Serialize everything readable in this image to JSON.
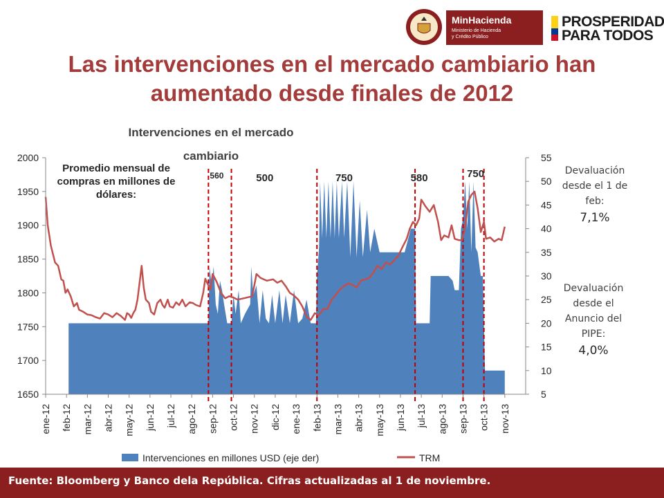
{
  "header": {
    "title_line1": "Las intervenciones en el mercado cambiario han",
    "title_line2": "aumentado desde finales de 2012",
    "logos": {
      "seal_icon": "republica-de-colombia-seal-icon",
      "ministry_name": "MinHacienda",
      "ministry_sub1": "Ministerio de Hacienda",
      "ministry_sub2": "y Crédito Público",
      "slogan_line1": "PROSPERIDAD",
      "slogan_line2": "PARA TODOS"
    }
  },
  "side_notes": {
    "note1_text": "Devaluación desde el 1 de feb:",
    "note1_value": "7,1%",
    "note2_text": "Devaluación desde el Anuncio del PIPE:",
    "note2_value": "4,0%"
  },
  "footer": {
    "text": "Fuente: Bloomberg y Banco dela República. Cifras actualizadas  al 1 de noviembre."
  },
  "colors": {
    "bar": "#4f81bd",
    "line": "#c0504d",
    "marker": "#c00000",
    "title": "#a33b3b",
    "footer": "#8b1f1f"
  },
  "chart_data": {
    "type": "area+line",
    "title_line1": "Intervenciones en el mercado",
    "title_line2": "cambiario",
    "annotation": "Promedio mensual de compras en millones de dólares:",
    "x_categories": [
      "ene-12",
      "feb-12",
      "mar-12",
      "abr-12",
      "may-12",
      "jun-12",
      "jul-12",
      "ago-12",
      "sep-12",
      "oct-12",
      "nov-12",
      "dic-12",
      "ene-13",
      "feb-13",
      "mar-13",
      "abr-13",
      "may-13",
      "jun-13",
      "jul-13",
      "ago-13",
      "sep-13",
      "oct-13",
      "nov-13"
    ],
    "y_left": {
      "min": 1650,
      "max": 2000,
      "step": 50,
      "ticks": [
        "2000",
        "1950",
        "1900",
        "1850",
        "1800",
        "1750",
        "1700",
        "1650"
      ]
    },
    "y_right": {
      "min": 5,
      "max": 55,
      "step": 5,
      "ticks": [
        "55",
        "50",
        "45",
        "40",
        "35",
        "30",
        "25",
        "20",
        "15",
        "10",
        "5"
      ]
    },
    "period_labels": [
      {
        "label": "560",
        "x": 8.2
      },
      {
        "label": "500",
        "x": 10.5
      },
      {
        "label": "750",
        "x": 14.3
      },
      {
        "label": "580",
        "x": 17.9
      },
      {
        "label": "750",
        "x": 20.6
      }
    ],
    "vertical_markers": [
      7.8,
      8.9,
      13.0,
      17.7,
      20.0,
      21.0
    ],
    "series": [
      {
        "name": "Intervenciones en millones USD (eje der)",
        "axis": "right",
        "points": [
          [
            1.1,
            5
          ],
          [
            1.1,
            20
          ],
          [
            2,
            20
          ],
          [
            3,
            20
          ],
          [
            4,
            20
          ],
          [
            5,
            20
          ],
          [
            6,
            20
          ],
          [
            7,
            20
          ],
          [
            7.8,
            20
          ],
          [
            7.85,
            32
          ],
          [
            7.95,
            28
          ],
          [
            8.05,
            32
          ],
          [
            8.15,
            24
          ],
          [
            8.25,
            22
          ],
          [
            8.35,
            29
          ],
          [
            8.45,
            27
          ],
          [
            8.55,
            24
          ],
          [
            8.7,
            20
          ],
          [
            8.9,
            20
          ],
          [
            9.0,
            26
          ],
          [
            9.1,
            22
          ],
          [
            9.25,
            27
          ],
          [
            9.35,
            20
          ],
          [
            9.55,
            22
          ],
          [
            9.8,
            24
          ],
          [
            9.85,
            32
          ],
          [
            9.95,
            26
          ],
          [
            10.1,
            28
          ],
          [
            10.25,
            20
          ],
          [
            10.4,
            27
          ],
          [
            10.55,
            21
          ],
          [
            10.7,
            20
          ],
          [
            10.85,
            26
          ],
          [
            11.0,
            20
          ],
          [
            11.2,
            27
          ],
          [
            11.35,
            20
          ],
          [
            11.5,
            26
          ],
          [
            11.7,
            20
          ],
          [
            11.9,
            27
          ],
          [
            12.1,
            20
          ],
          [
            12.3,
            21
          ],
          [
            12.5,
            25
          ],
          [
            12.7,
            20
          ],
          [
            12.95,
            20
          ],
          [
            13.0,
            30
          ],
          [
            13.1,
            36
          ],
          [
            13.15,
            50
          ],
          [
            13.25,
            38
          ],
          [
            13.35,
            50
          ],
          [
            13.45,
            38
          ],
          [
            13.55,
            50
          ],
          [
            13.65,
            38
          ],
          [
            13.75,
            50
          ],
          [
            13.85,
            38
          ],
          [
            13.95,
            50
          ],
          [
            14.05,
            38
          ],
          [
            14.2,
            50
          ],
          [
            14.3,
            38
          ],
          [
            14.45,
            50
          ],
          [
            14.6,
            34
          ],
          [
            14.75,
            50
          ],
          [
            14.9,
            34
          ],
          [
            15.05,
            46
          ],
          [
            15.2,
            34
          ],
          [
            15.4,
            44
          ],
          [
            15.55,
            35
          ],
          [
            15.75,
            40
          ],
          [
            16.0,
            35
          ],
          [
            16.3,
            35
          ],
          [
            16.6,
            35
          ],
          [
            16.9,
            35
          ],
          [
            17.2,
            35
          ],
          [
            17.5,
            40
          ],
          [
            17.7,
            40
          ],
          [
            17.75,
            20
          ],
          [
            18.0,
            20
          ],
          [
            18.4,
            20
          ],
          [
            18.45,
            30
          ],
          [
            18.7,
            30
          ],
          [
            19.0,
            30
          ],
          [
            19.3,
            30
          ],
          [
            19.5,
            29
          ],
          [
            19.6,
            27
          ],
          [
            19.8,
            27
          ],
          [
            19.9,
            40
          ],
          [
            20.0,
            42
          ],
          [
            20.1,
            50
          ],
          [
            20.2,
            40
          ],
          [
            20.3,
            50
          ],
          [
            20.4,
            35
          ],
          [
            20.5,
            50
          ],
          [
            20.6,
            36
          ],
          [
            20.7,
            35
          ],
          [
            20.85,
            30
          ],
          [
            20.95,
            30
          ],
          [
            21.05,
            10
          ],
          [
            21.3,
            10
          ],
          [
            22.0,
            10
          ],
          [
            22.0,
            5
          ]
        ]
      },
      {
        "name": "TRM",
        "axis": "left",
        "points": [
          [
            0,
            1942
          ],
          [
            0.1,
            1900
          ],
          [
            0.25,
            1870
          ],
          [
            0.45,
            1845
          ],
          [
            0.6,
            1840
          ],
          [
            0.75,
            1820
          ],
          [
            0.85,
            1818
          ],
          [
            0.95,
            1800
          ],
          [
            1.05,
            1805
          ],
          [
            1.2,
            1795
          ],
          [
            1.35,
            1780
          ],
          [
            1.5,
            1785
          ],
          [
            1.6,
            1775
          ],
          [
            1.8,
            1772
          ],
          [
            2,
            1768
          ],
          [
            2.2,
            1767
          ],
          [
            2.4,
            1764
          ],
          [
            2.6,
            1762
          ],
          [
            2.8,
            1770
          ],
          [
            3,
            1768
          ],
          [
            3.2,
            1764
          ],
          [
            3.4,
            1770
          ],
          [
            3.6,
            1766
          ],
          [
            3.8,
            1760
          ],
          [
            3.9,
            1770
          ],
          [
            4.0,
            1768
          ],
          [
            4.1,
            1763
          ],
          [
            4.2,
            1770
          ],
          [
            4.3,
            1775
          ],
          [
            4.4,
            1790
          ],
          [
            4.5,
            1815
          ],
          [
            4.6,
            1840
          ],
          [
            4.7,
            1808
          ],
          [
            4.8,
            1790
          ],
          [
            4.95,
            1785
          ],
          [
            5.05,
            1772
          ],
          [
            5.2,
            1768
          ],
          [
            5.35,
            1785
          ],
          [
            5.5,
            1790
          ],
          [
            5.6,
            1782
          ],
          [
            5.7,
            1778
          ],
          [
            5.85,
            1790
          ],
          [
            5.95,
            1780
          ],
          [
            6.1,
            1778
          ],
          [
            6.25,
            1786
          ],
          [
            6.4,
            1782
          ],
          [
            6.55,
            1790
          ],
          [
            6.7,
            1780
          ],
          [
            6.9,
            1786
          ],
          [
            7.05,
            1785
          ],
          [
            7.2,
            1782
          ],
          [
            7.4,
            1780
          ],
          [
            7.55,
            1800
          ],
          [
            7.65,
            1821
          ],
          [
            7.75,
            1814
          ],
          [
            7.9,
            1805
          ],
          [
            8.0,
            1828
          ],
          [
            8.2,
            1816
          ],
          [
            8.4,
            1800
          ],
          [
            8.6,
            1792
          ],
          [
            8.8,
            1795
          ],
          [
            9.0,
            1793
          ],
          [
            9.2,
            1790
          ],
          [
            9.5,
            1792
          ],
          [
            9.9,
            1795
          ],
          [
            10.1,
            1828
          ],
          [
            10.3,
            1822
          ],
          [
            10.6,
            1818
          ],
          [
            10.9,
            1820
          ],
          [
            11.1,
            1815
          ],
          [
            11.3,
            1818
          ],
          [
            11.5,
            1810
          ],
          [
            11.7,
            1800
          ],
          [
            11.9,
            1796
          ],
          [
            12.1,
            1790
          ],
          [
            12.3,
            1780
          ],
          [
            12.5,
            1765
          ],
          [
            12.7,
            1760
          ],
          [
            12.9,
            1770
          ],
          [
            13.1,
            1767
          ],
          [
            13.3,
            1776
          ],
          [
            13.5,
            1776
          ],
          [
            13.7,
            1790
          ],
          [
            13.9,
            1797
          ],
          [
            14.1,
            1805
          ],
          [
            14.3,
            1810
          ],
          [
            14.5,
            1814
          ],
          [
            14.7,
            1812
          ],
          [
            14.9,
            1808
          ],
          [
            15.1,
            1818
          ],
          [
            15.3,
            1820
          ],
          [
            15.5,
            1822
          ],
          [
            15.7,
            1830
          ],
          [
            15.9,
            1840
          ],
          [
            16.1,
            1835
          ],
          [
            16.3,
            1845
          ],
          [
            16.5,
            1842
          ],
          [
            16.7,
            1848
          ],
          [
            16.9,
            1855
          ],
          [
            17.1,
            1868
          ],
          [
            17.3,
            1880
          ],
          [
            17.45,
            1895
          ],
          [
            17.6,
            1905
          ],
          [
            17.75,
            1900
          ],
          [
            17.9,
            1910
          ],
          [
            18.0,
            1938
          ],
          [
            18.2,
            1928
          ],
          [
            18.4,
            1920
          ],
          [
            18.6,
            1930
          ],
          [
            18.8,
            1905
          ],
          [
            18.95,
            1878
          ],
          [
            19.1,
            1885
          ],
          [
            19.3,
            1882
          ],
          [
            19.45,
            1900
          ],
          [
            19.6,
            1880
          ],
          [
            19.8,
            1878
          ],
          [
            19.95,
            1878
          ],
          [
            20.05,
            1890
          ],
          [
            20.15,
            1910
          ],
          [
            20.25,
            1935
          ],
          [
            20.4,
            1945
          ],
          [
            20.55,
            1950
          ],
          [
            20.7,
            1925
          ],
          [
            20.85,
            1890
          ],
          [
            21.0,
            1905
          ],
          [
            21.1,
            1880
          ],
          [
            21.3,
            1882
          ],
          [
            21.5,
            1876
          ],
          [
            21.7,
            1880
          ],
          [
            21.85,
            1878
          ],
          [
            22.0,
            1898
          ]
        ]
      }
    ],
    "legend": [
      {
        "label": "Intervenciones en millones USD (eje der)",
        "kind": "bar"
      },
      {
        "label": "TRM",
        "kind": "line"
      }
    ]
  }
}
